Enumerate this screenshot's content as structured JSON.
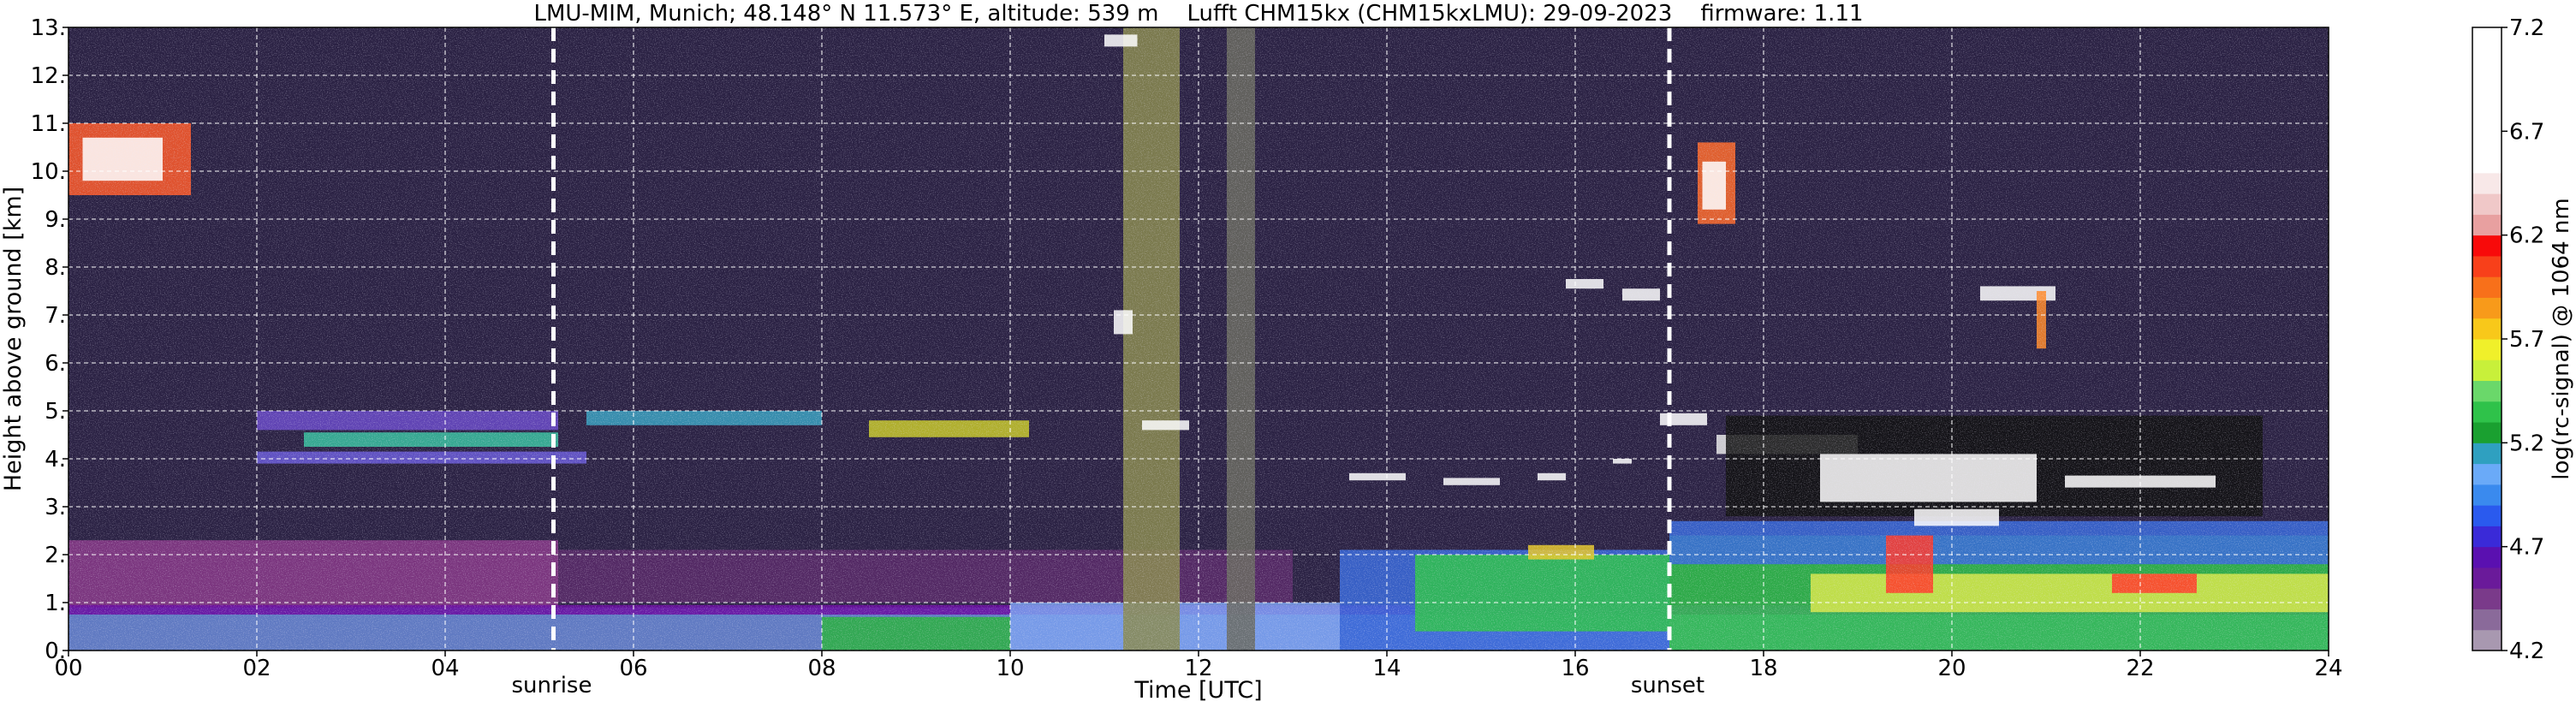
{
  "chart_data": [
    {
      "type": "heatmap",
      "title": "LMU-MIM, Munich; 48.148° N 11.573° E, altitude: 539 m    Lufft CHM15kx (CHM15kxLMU): 29-09-2023    firmware: 1.11",
      "xlabel": "Time [UTC]",
      "ylabel": "Height above ground [km]",
      "xlim": [
        0,
        24
      ],
      "ylim": [
        0,
        13
      ],
      "x_ticks": [
        "00",
        "02",
        "04",
        "06",
        "08",
        "10",
        "12",
        "14",
        "16",
        "18",
        "20",
        "22",
        "24"
      ],
      "x_tick_values": [
        0,
        2,
        4,
        6,
        8,
        10,
        12,
        14,
        16,
        18,
        20,
        22,
        24
      ],
      "y_ticks": [
        "0.",
        "1.",
        "2.",
        "3.",
        "4.",
        "5.",
        "6.",
        "7.",
        "8.",
        "9.",
        "10.",
        "11.",
        "12.",
        "13."
      ],
      "y_tick_values": [
        0,
        1,
        2,
        3,
        4,
        5,
        6,
        7,
        8,
        9,
        10,
        11,
        12,
        13
      ],
      "grid": true,
      "annotations": [
        {
          "text": "sunrise",
          "x": 5.15
        },
        {
          "text": "sunset",
          "x": 17.0
        }
      ],
      "background_color": "#2b2244",
      "features": [
        {
          "x0": 0,
          "x1": 1.3,
          "y0": 9.5,
          "y1": 11.0,
          "color": "#ff5a2a"
        },
        {
          "x0": 0.15,
          "x1": 1.0,
          "y0": 9.8,
          "y1": 10.7,
          "color": "#ffffff"
        },
        {
          "x0": 0,
          "x1": 5.2,
          "y0": 0.9,
          "y1": 2.3,
          "color": "#8a3a8a"
        },
        {
          "x0": 5.2,
          "x1": 13.0,
          "y0": 1.0,
          "y1": 2.1,
          "color": "#5a2a6a"
        },
        {
          "x0": 0,
          "x1": 24,
          "y0": 0,
          "y1": 0.9,
          "color": "#6a8ad8"
        },
        {
          "x0": 0,
          "x1": 24,
          "y0": 0.75,
          "y1": 0.95,
          "color": "#6a0aa0"
        },
        {
          "x0": 8.0,
          "x1": 10.0,
          "y0": 0,
          "y1": 0.7,
          "color": "#2ab040"
        },
        {
          "x0": 10.0,
          "x1": 13.5,
          "y0": 0,
          "y1": 1.0,
          "color": "#7aa0ee"
        },
        {
          "x0": 13.5,
          "x1": 17.0,
          "y0": 0,
          "y1": 2.1,
          "color": "#3a6adc"
        },
        {
          "x0": 14.3,
          "x1": 17.0,
          "y0": 0.4,
          "y1": 2.0,
          "color": "#2fc24a"
        },
        {
          "x0": 17.0,
          "x1": 24,
          "y0": 0,
          "y1": 2.4,
          "color": "#2fc24a"
        },
        {
          "x0": 17.0,
          "x1": 24,
          "y0": 1.8,
          "y1": 2.7,
          "color": "#3a6adc"
        },
        {
          "x0": 18.5,
          "x1": 24,
          "y0": 0.8,
          "y1": 1.6,
          "color": "#d8e84a"
        },
        {
          "x0": 2.0,
          "x1": 5.2,
          "y0": 4.6,
          "y1": 5.0,
          "color": "#6a4ac8"
        },
        {
          "x0": 2.5,
          "x1": 5.2,
          "y0": 4.25,
          "y1": 4.55,
          "color": "#3ac0a0"
        },
        {
          "x0": 2.0,
          "x1": 5.5,
          "y0": 3.9,
          "y1": 4.15,
          "color": "#6a5ad8"
        },
        {
          "x0": 5.5,
          "x1": 8.0,
          "y0": 4.7,
          "y1": 5.0,
          "color": "#3aa0c0"
        },
        {
          "x0": 8.5,
          "x1": 10.2,
          "y0": 4.45,
          "y1": 4.8,
          "color": "#c8c82a"
        },
        {
          "x0": 11.2,
          "x1": 11.8,
          "y0": 0,
          "y1": 13,
          "color": "#8a8a50"
        },
        {
          "x0": 12.3,
          "x1": 12.6,
          "y0": 0,
          "y1": 13,
          "color": "#6a6a60"
        },
        {
          "x0": 11.0,
          "x1": 11.35,
          "y0": 12.6,
          "y1": 12.85,
          "color": "#ffffff"
        },
        {
          "x0": 11.1,
          "x1": 11.3,
          "y0": 6.6,
          "y1": 7.1,
          "color": "#ffffff"
        },
        {
          "x0": 11.4,
          "x1": 11.9,
          "y0": 4.6,
          "y1": 4.8,
          "color": "#ffffff"
        },
        {
          "x0": 13.6,
          "x1": 14.2,
          "y0": 3.55,
          "y1": 3.7,
          "color": "#ffffff"
        },
        {
          "x0": 14.6,
          "x1": 15.2,
          "y0": 3.45,
          "y1": 3.6,
          "color": "#ffffff"
        },
        {
          "x0": 15.6,
          "x1": 15.9,
          "y0": 3.55,
          "y1": 3.7,
          "color": "#ffffff"
        },
        {
          "x0": 16.4,
          "x1": 16.6,
          "y0": 3.9,
          "y1": 4.0,
          "color": "#ffffff"
        },
        {
          "x0": 15.9,
          "x1": 16.3,
          "y0": 7.55,
          "y1": 7.75,
          "color": "#ffffff"
        },
        {
          "x0": 16.5,
          "x1": 16.9,
          "y0": 7.3,
          "y1": 7.55,
          "color": "#ffffff"
        },
        {
          "x0": 16.9,
          "x1": 17.4,
          "y0": 4.7,
          "y1": 4.95,
          "color": "#ffffff"
        },
        {
          "x0": 17.3,
          "x1": 17.7,
          "y0": 8.9,
          "y1": 10.6,
          "color": "#ff6a2a"
        },
        {
          "x0": 17.35,
          "x1": 17.6,
          "y0": 9.2,
          "y1": 10.2,
          "color": "#ffffff"
        },
        {
          "x0": 17.5,
          "x1": 19.0,
          "y0": 4.1,
          "y1": 4.5,
          "color": "#e8e8e8"
        },
        {
          "x0": 17.6,
          "x1": 23.3,
          "y0": 2.8,
          "y1": 4.9,
          "color": "#111111"
        },
        {
          "x0": 18.6,
          "x1": 20.9,
          "y0": 3.1,
          "y1": 4.1,
          "color": "#ffffff"
        },
        {
          "x0": 19.6,
          "x1": 20.5,
          "y0": 2.6,
          "y1": 2.95,
          "color": "#ffffff"
        },
        {
          "x0": 21.2,
          "x1": 22.8,
          "y0": 3.4,
          "y1": 3.65,
          "color": "#ffffff"
        },
        {
          "x0": 20.3,
          "x1": 21.1,
          "y0": 7.3,
          "y1": 7.6,
          "color": "#ffffff"
        },
        {
          "x0": 20.9,
          "x1": 21.0,
          "y0": 6.3,
          "y1": 7.5,
          "color": "#ff8a2a"
        },
        {
          "x0": 19.3,
          "x1": 19.8,
          "y0": 1.2,
          "y1": 2.4,
          "color": "#ff3a2a"
        },
        {
          "x0": 21.7,
          "x1": 22.6,
          "y0": 1.2,
          "y1": 1.6,
          "color": "#ff3a2a"
        },
        {
          "x0": 15.5,
          "x1": 16.2,
          "y0": 1.9,
          "y1": 2.2,
          "color": "#e8c82a"
        }
      ],
      "vlines": [
        5.15,
        17.0
      ]
    },
    {
      "type": "colorbar",
      "label": "log(rc-signal) @ 1064 nm",
      "ticks": [
        "4.2",
        "4.7",
        "5.2",
        "5.7",
        "6.2",
        "6.7",
        "7.2"
      ],
      "tick_values": [
        4.2,
        4.7,
        5.2,
        5.7,
        6.2,
        6.7,
        7.2
      ],
      "range": [
        4.2,
        7.2
      ],
      "steps": [
        {
          "from": 4.2,
          "color": "#a898b0"
        },
        {
          "from": 4.3,
          "color": "#8a6a9a"
        },
        {
          "from": 4.4,
          "color": "#7a3a8a"
        },
        {
          "from": 4.5,
          "color": "#6a1a9a"
        },
        {
          "from": 4.6,
          "color": "#5a10b0"
        },
        {
          "from": 4.7,
          "color": "#3a2ad8"
        },
        {
          "from": 4.8,
          "color": "#2a5aee"
        },
        {
          "from": 4.9,
          "color": "#3a8aee"
        },
        {
          "from": 5.0,
          "color": "#6aaaf8"
        },
        {
          "from": 5.1,
          "color": "#2fa0c0"
        },
        {
          "from": 5.2,
          "color": "#1aa030"
        },
        {
          "from": 5.3,
          "color": "#2fc24a"
        },
        {
          "from": 5.4,
          "color": "#6ad86a"
        },
        {
          "from": 5.5,
          "color": "#c8f03a"
        },
        {
          "from": 5.6,
          "color": "#f0f02a"
        },
        {
          "from": 5.7,
          "color": "#f8c81a"
        },
        {
          "from": 5.8,
          "color": "#f89a1a"
        },
        {
          "from": 5.9,
          "color": "#f8701a"
        },
        {
          "from": 6.0,
          "color": "#f8401a"
        },
        {
          "from": 6.1,
          "color": "#f80a0a"
        },
        {
          "from": 6.2,
          "color": "#e8a0a0"
        },
        {
          "from": 6.3,
          "color": "#f0c8c8"
        },
        {
          "from": 6.4,
          "color": "#f8e8e8"
        },
        {
          "from": 6.5,
          "color": "#ffffff"
        }
      ]
    }
  ]
}
